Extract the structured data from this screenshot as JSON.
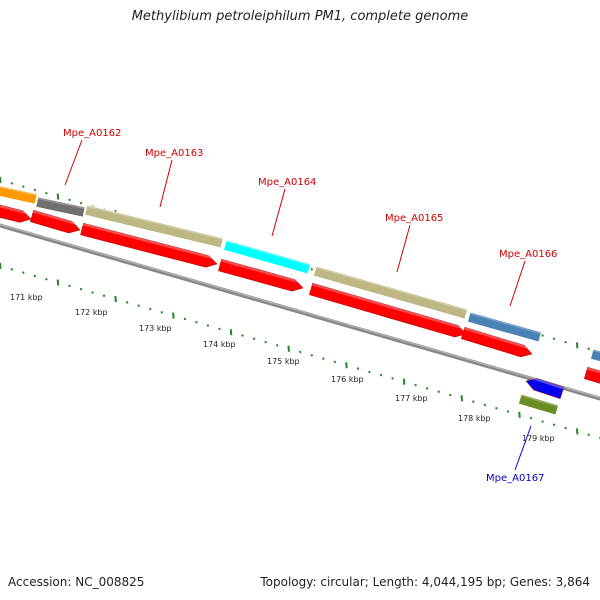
{
  "title": "Methylibium petroleiphilum PM1, complete genome",
  "footer": {
    "accession": "Accession: NC_008825",
    "topology": "Topology: circular; Length: 4,044,195 bp; Genes: 3,864"
  },
  "colors": {
    "forward_label": "#cc0000",
    "reverse_label": "#0000cc",
    "cds_arrow": "#ff0000",
    "backbone": "#888888",
    "tick_green": "#228822"
  },
  "kbp_labels": [
    "171 kbp",
    "172 kbp",
    "173 kbp",
    "174 kbp",
    "175 kbp",
    "176 kbp",
    "177 kbp",
    "178 kbp",
    "179 kbp"
  ],
  "genes": [
    {
      "name": "Mpe_A0162",
      "strand": "forward",
      "feature_color": "#707070"
    },
    {
      "name": "Mpe_A0163",
      "strand": "forward",
      "feature_color": "#bdb883"
    },
    {
      "name": "Mpe_A0164",
      "strand": "forward",
      "feature_color": "#00ffff"
    },
    {
      "name": "Mpe_A0165",
      "strand": "forward",
      "feature_color": "#bdb883"
    },
    {
      "name": "Mpe_A0166",
      "strand": "forward",
      "feature_color": "#4a82b4"
    },
    {
      "name": "Mpe_A0167",
      "strand": "reverse",
      "feature_color": "#6b8e23"
    }
  ]
}
